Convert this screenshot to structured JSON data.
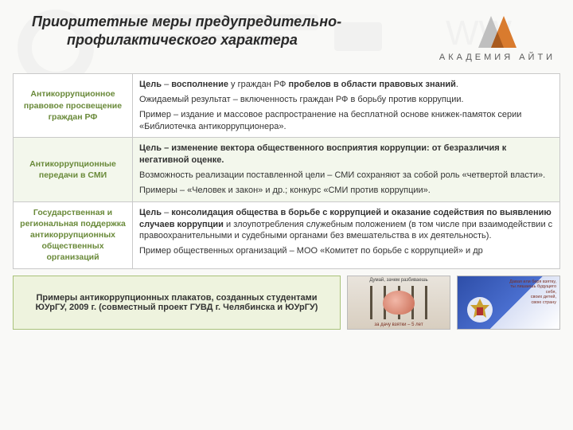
{
  "header": {
    "title_line1": "Приоритетные меры предупредительно-",
    "title_line2": "профилактического характера",
    "academy_label": "АКАДЕМИЯ  АЙТИ"
  },
  "colors": {
    "accent_green": "#6a8a3a",
    "row_alt_bg": "#f3f7ec",
    "border": "#c9c9c9",
    "logo_orange": "#d97b2e",
    "logo_gray": "#bfbfbf",
    "caption_bg": "#eef3de",
    "caption_border": "#a9c27a"
  },
  "table": {
    "rows": [
      {
        "left": "Антикоррупционное правовое просвещение граждан РФ",
        "right": [
          {
            "bold_lead": "Цель",
            "bold_pre": " – ",
            "bold_mid": "восполнение",
            "tail": " у граждан РФ ",
            "bold_tail": "пробелов в области правовых знаний",
            "end": "."
          },
          "Ожидаемый результат – включенность граждан РФ в борьбу против коррупции.",
          "Пример – издание и массовое распространение на бесплатной основе книжек-памяток серии «Библиотечка антикоррупционера»."
        ]
      },
      {
        "left": "Антикоррупционные передачи в СМИ",
        "right": [
          {
            "bold_full": "Цель – изменение вектора общественного восприятия коррупции: от безразличия к негативной оценке."
          },
          "Возможность реализации поставленной цели – СМИ сохраняют за собой роль «четвертой власти».",
          "Примеры – «Человек и закон» и др.; конкурс «СМИ против коррупции»."
        ]
      },
      {
        "left": "Государственная и региональная поддержка антикоррупционных общественных организаций",
        "right": [
          {
            "bold_lead": "Цель",
            "bold_pre": " – ",
            "bold_mid": "консолидация общества в борьбе с коррупцией и оказание содействия по выявлению случаев коррупции",
            "tail": " и злоупотребления служебным положением (в том числе при взаимодействии с правоохранительными и судебными органами без вмешательства в их деятельность)."
          },
          "Пример общественных организаций – МОО «Комитет по борьбе с коррупцией» и др"
        ]
      }
    ]
  },
  "footer": {
    "caption": "Примеры антикоррупционных плакатов, созданных студентами ЮУрГУ, 2009 г. (совместный проект ГУВД г. Челябинска и ЮУрГУ)",
    "poster1_top": "Думай, зачем разбиваешь",
    "poster1_bottom": "за дачу взятки – 5 лет",
    "poster2_text": "Давая или беря взятку,\\nты лишаешь будущего\\nсебя,\\nсвоих детей,\\nсвою страну"
  }
}
